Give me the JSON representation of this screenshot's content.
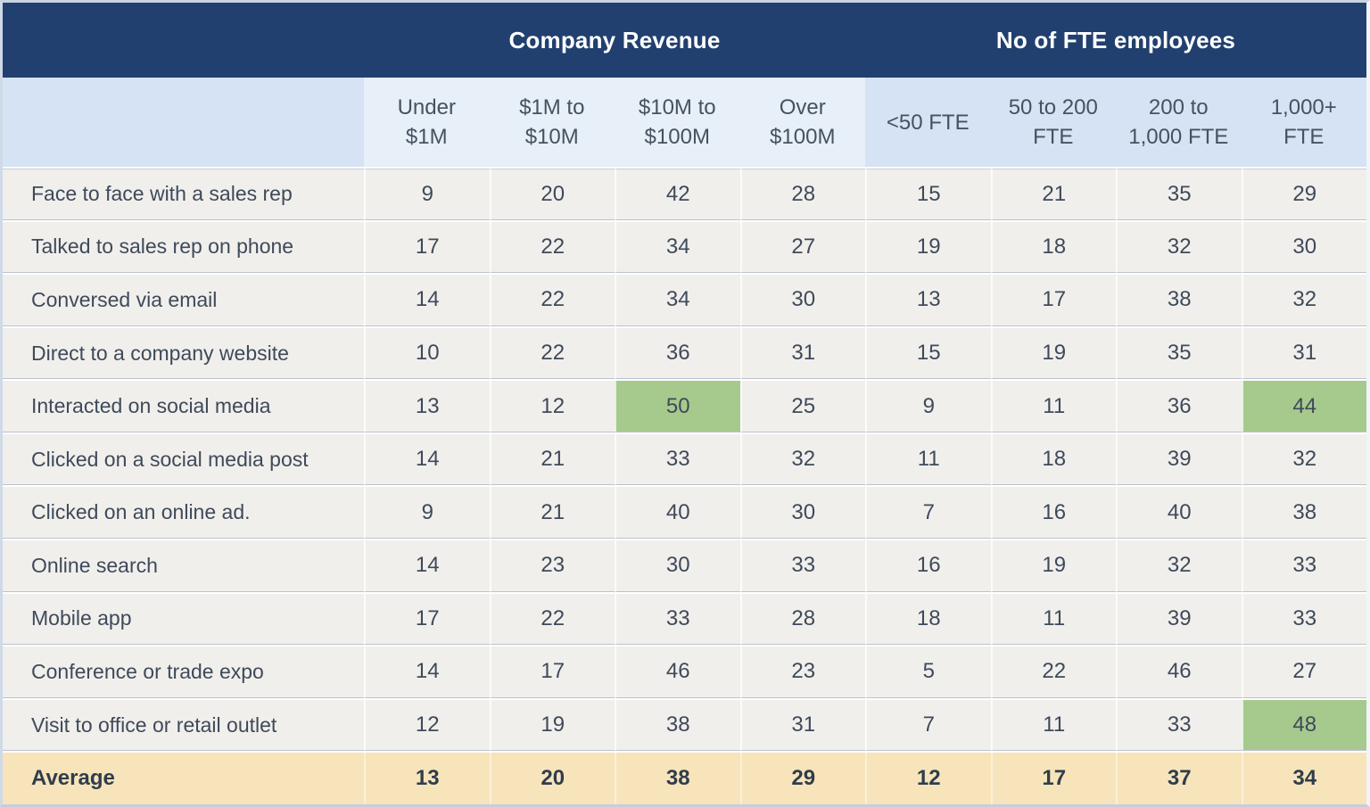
{
  "colors": {
    "navy": "#21406F",
    "headerText": "#FFFFFF",
    "subLight": "#E7EFF9",
    "subDark": "#D5E3F4",
    "rowBg": "#F1EFEC",
    "green": "#A6CA8D",
    "avgBg": "#F8E4BA",
    "text": "#3E4A5A",
    "sep": "#BBC1CC"
  },
  "table": {
    "group_headers": {
      "revenue": "Company Revenue",
      "fte": "No of FTE employees"
    },
    "column_headers": [
      {
        "text": "Under\n$1M",
        "group": "revenue"
      },
      {
        "text": "$1M to\n$10M",
        "group": "revenue"
      },
      {
        "text": "$10M to\n$100M",
        "group": "revenue"
      },
      {
        "text": "Over\n$100M",
        "group": "revenue"
      },
      {
        "text": "<50 FTE",
        "group": "fte"
      },
      {
        "text": "50 to 200\nFTE",
        "group": "fte"
      },
      {
        "text": "200 to\n1,000 FTE",
        "group": "fte"
      },
      {
        "text": "1,000+\nFTE",
        "group": "fte"
      }
    ],
    "rows": [
      {
        "label": "Face to face with a sales rep",
        "values": [
          9,
          20,
          42,
          28,
          15,
          21,
          35,
          29
        ],
        "highlight_cols": []
      },
      {
        "label": "Talked to sales rep on phone",
        "values": [
          17,
          22,
          34,
          27,
          19,
          18,
          32,
          30
        ],
        "highlight_cols": []
      },
      {
        "label": "Conversed via email",
        "values": [
          14,
          22,
          34,
          30,
          13,
          17,
          38,
          32
        ],
        "highlight_cols": []
      },
      {
        "label": "Direct to a company website",
        "values": [
          10,
          22,
          36,
          31,
          15,
          19,
          35,
          31
        ],
        "highlight_cols": []
      },
      {
        "label": "Interacted on social media",
        "values": [
          13,
          12,
          50,
          25,
          9,
          11,
          36,
          44
        ],
        "highlight_cols": [
          2,
          7
        ]
      },
      {
        "label": "Clicked on a social media post",
        "values": [
          14,
          21,
          33,
          32,
          11,
          18,
          39,
          32
        ],
        "highlight_cols": []
      },
      {
        "label": "Clicked on an online ad.",
        "values": [
          9,
          21,
          40,
          30,
          7,
          16,
          40,
          38
        ],
        "highlight_cols": []
      },
      {
        "label": "Online search",
        "values": [
          14,
          23,
          30,
          33,
          16,
          19,
          32,
          33
        ],
        "highlight_cols": []
      },
      {
        "label": "Mobile app",
        "values": [
          17,
          22,
          33,
          28,
          18,
          11,
          39,
          33
        ],
        "highlight_cols": []
      },
      {
        "label": "Conference or trade expo",
        "values": [
          14,
          17,
          46,
          23,
          5,
          22,
          46,
          27
        ],
        "highlight_cols": []
      },
      {
        "label": "Visit to office or retail outlet",
        "values": [
          12,
          19,
          38,
          31,
          7,
          11,
          33,
          48
        ],
        "highlight_cols": [
          7
        ]
      }
    ],
    "average_row": {
      "label": "Average",
      "values": [
        13,
        20,
        38,
        29,
        12,
        17,
        37,
        34
      ]
    }
  },
  "chart_data": {
    "type": "table",
    "title": "",
    "column_groups": [
      {
        "label": "Company Revenue",
        "columns": [
          "Under $1M",
          "$1M to $10M",
          "$10M to $100M",
          "Over $100M"
        ]
      },
      {
        "label": "No of FTE employees",
        "columns": [
          "<50 FTE",
          "50 to 200 FTE",
          "200 to 1,000 FTE",
          "1,000+ FTE"
        ]
      }
    ],
    "row_labels": [
      "Face to face with a sales rep",
      "Talked to sales rep on phone",
      "Conversed via email",
      "Direct to a company website",
      "Interacted on social media",
      "Clicked on a social media post",
      "Clicked on an online ad.",
      "Online search",
      "Mobile app",
      "Conference or trade expo",
      "Visit to office or retail outlet",
      "Average"
    ],
    "values": [
      [
        9,
        20,
        42,
        28,
        15,
        21,
        35,
        29
      ],
      [
        17,
        22,
        34,
        27,
        19,
        18,
        32,
        30
      ],
      [
        14,
        22,
        34,
        30,
        13,
        17,
        38,
        32
      ],
      [
        10,
        22,
        36,
        31,
        15,
        19,
        35,
        31
      ],
      [
        13,
        12,
        50,
        25,
        9,
        11,
        36,
        44
      ],
      [
        14,
        21,
        33,
        32,
        11,
        18,
        39,
        32
      ],
      [
        9,
        21,
        40,
        30,
        7,
        16,
        40,
        38
      ],
      [
        14,
        23,
        30,
        33,
        16,
        19,
        32,
        33
      ],
      [
        17,
        22,
        33,
        28,
        18,
        11,
        39,
        33
      ],
      [
        14,
        17,
        46,
        23,
        5,
        22,
        46,
        27
      ],
      [
        12,
        19,
        38,
        31,
        7,
        11,
        33,
        48
      ],
      [
        13,
        20,
        38,
        29,
        12,
        17,
        37,
        34
      ]
    ],
    "highlighted_cells": [
      {
        "row": "Interacted on social media",
        "column": "$10M to $100M",
        "value": 50
      },
      {
        "row": "Interacted on social media",
        "column": "1,000+ FTE",
        "value": 44
      },
      {
        "row": "Visit to office or retail outlet",
        "column": "1,000+ FTE",
        "value": 48
      }
    ],
    "highlight_color": "#A6CA8D",
    "average_row_color": "#F8E4BA"
  }
}
